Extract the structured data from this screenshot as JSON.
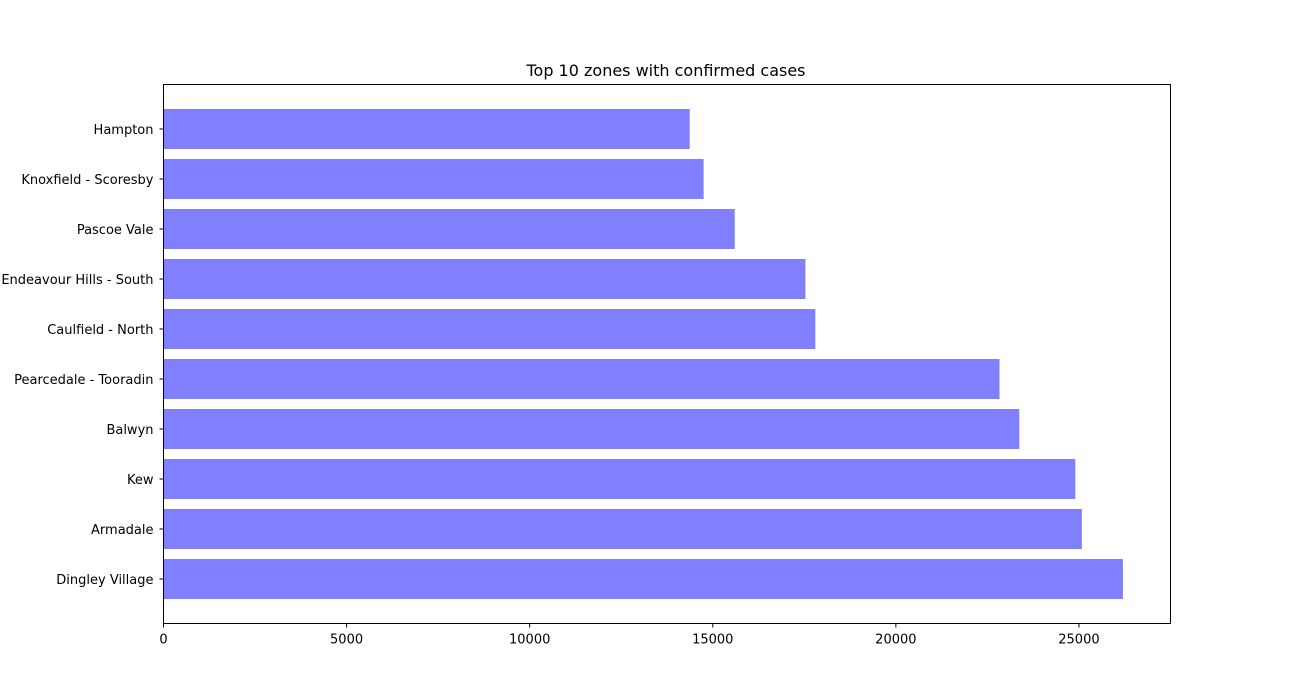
{
  "colors": {
    "bar": "#8080ff",
    "axis": "#000000"
  },
  "chart_data": {
    "type": "bar",
    "orientation": "horizontal",
    "title": "Top 10 zones with confirmed cases",
    "xlabel": "",
    "ylabel": "",
    "xlim": [
      0,
      27500
    ],
    "x_ticks": [
      0,
      5000,
      10000,
      15000,
      20000,
      25000
    ],
    "grid": false,
    "categories": [
      "Dingley Village",
      "Armadale",
      "Kew",
      "Balwyn",
      "Pearcedale - Tooradin",
      "Caulfield - North",
      "Endeavour Hills - South",
      "Pascoe Vale",
      "Knoxfield - Scoresby",
      "Hampton"
    ],
    "values": [
      26200,
      25080,
      24900,
      23370,
      22830,
      17800,
      17530,
      15600,
      14750,
      14370
    ]
  }
}
